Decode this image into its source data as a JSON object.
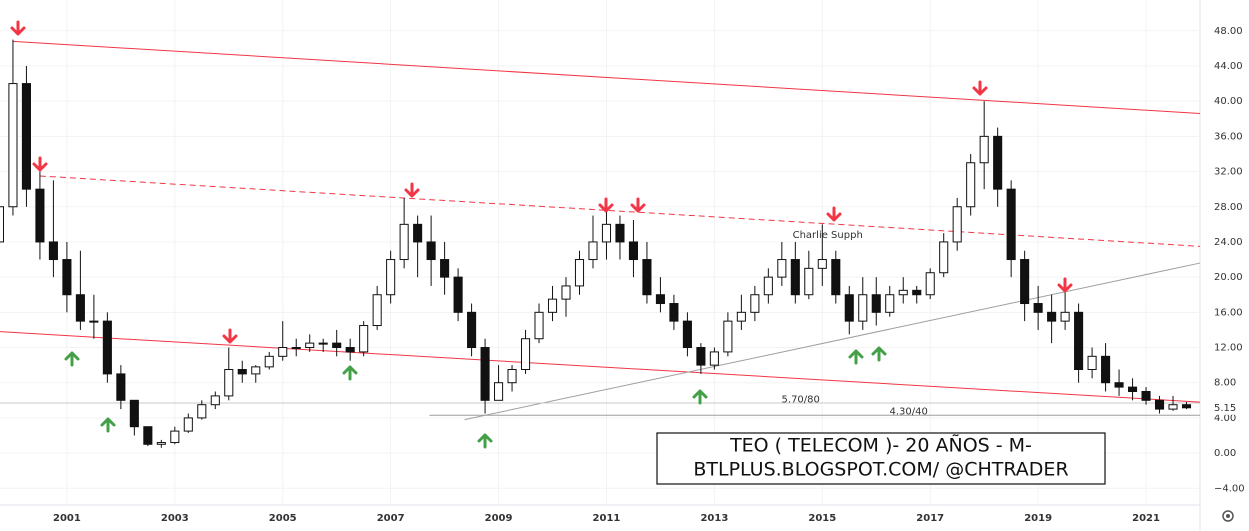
{
  "chart_data": {
    "type": "candlestick",
    "title": [
      "TEO ( TELECOM )- 20 AÑOS - M-",
      "BTLPLUS.BLOGSPOT.COM/ @CHTRADER"
    ],
    "x": [
      1999.75,
      2000.0,
      2000.25,
      2000.5,
      2000.75,
      2001.0,
      2001.25,
      2001.5,
      2001.75,
      2002.0,
      2002.25,
      2002.5,
      2002.75,
      2003.0,
      2003.25,
      2003.5,
      2003.75,
      2004.0,
      2004.25,
      2004.5,
      2004.75,
      2005.0,
      2005.25,
      2005.5,
      2005.75,
      2006.0,
      2006.25,
      2006.5,
      2006.75,
      2007.0,
      2007.25,
      2007.5,
      2007.75,
      2008.0,
      2008.25,
      2008.5,
      2008.75,
      2009.0,
      2009.25,
      2009.5,
      2009.75,
      2010.0,
      2010.25,
      2010.5,
      2010.75,
      2011.0,
      2011.25,
      2011.5,
      2011.75,
      2012.0,
      2012.25,
      2012.5,
      2012.75,
      2013.0,
      2013.25,
      2013.5,
      2013.75,
      2014.0,
      2014.25,
      2014.5,
      2014.75,
      2015.0,
      2015.25,
      2015.5,
      2015.75,
      2016.0,
      2016.25,
      2016.5,
      2016.75,
      2017.0,
      2017.25,
      2017.5,
      2017.75,
      2018.0,
      2018.25,
      2018.5,
      2018.75,
      2019.0,
      2019.25,
      2019.5,
      2019.75,
      2020.0,
      2020.25,
      2020.5,
      2020.75,
      2021.0,
      2021.25,
      2021.5,
      2021.75
    ],
    "open": [
      24,
      28,
      42,
      30,
      24,
      22,
      18,
      15,
      15,
      9,
      6,
      3,
      1,
      1.2,
      2.5,
      4,
      5.5,
      6.5,
      9.5,
      9,
      9.8,
      11,
      12,
      12,
      12.5,
      12.5,
      12,
      11.5,
      14.5,
      18,
      22,
      26,
      24,
      22,
      20,
      16,
      12,
      6,
      8,
      9.5,
      13,
      16,
      17.5,
      19,
      22,
      24,
      26,
      24,
      22,
      18,
      17,
      15,
      12,
      10,
      11.5,
      15,
      16,
      18,
      20,
      22,
      18,
      21,
      22,
      18,
      15,
      18,
      16,
      18,
      18.5,
      18,
      20.5,
      24,
      28,
      33,
      36,
      30,
      22,
      17,
      16,
      15,
      16,
      9.5,
      11,
      8,
      7.5,
      7,
      6,
      5,
      5.5
    ],
    "high": [
      30,
      47,
      44,
      32,
      31,
      24,
      23,
      18,
      16,
      10,
      6,
      3,
      1.5,
      3,
      4.5,
      6,
      7,
      12,
      10.5,
      10,
      11.5,
      15,
      13,
      13.5,
      13,
      14,
      13,
      15,
      19,
      23,
      29,
      27,
      27,
      24,
      21,
      17,
      13,
      10,
      10,
      14,
      17,
      19,
      20,
      23,
      27,
      28,
      27,
      26.5,
      24,
      20,
      18,
      16,
      12.5,
      12,
      16,
      18,
      19,
      21,
      24,
      24,
      23,
      26,
      23,
      19,
      20,
      20,
      19,
      20,
      19,
      21,
      25,
      29,
      34,
      40,
      37,
      31,
      23,
      19,
      18,
      18.5,
      17,
      12,
      12.5,
      9.5,
      8.5,
      7.5,
      6.5,
      6.5,
      5.8
    ],
    "low": [
      22,
      27,
      28,
      22,
      20,
      16,
      14,
      13,
      8,
      5,
      2,
      0.8,
      0.6,
      1,
      2.3,
      3.8,
      5,
      6,
      8,
      8,
      9.5,
      10.5,
      11,
      11.5,
      11.5,
      11,
      10.5,
      11,
      14,
      17,
      21,
      20,
      19,
      18,
      15,
      11,
      4.5,
      6,
      7,
      9,
      12.5,
      15,
      15.5,
      18,
      21,
      22,
      22,
      20,
      17,
      16,
      14,
      11,
      9,
      9.5,
      11,
      14,
      15,
      17,
      19,
      17,
      17.5,
      19,
      17,
      13.5,
      14,
      14.5,
      15.5,
      17,
      17,
      17.5,
      20,
      23,
      27,
      30,
      28,
      20,
      15,
      14,
      12.5,
      14,
      8,
      8.5,
      7,
      6.5,
      6,
      5.5,
      4.5,
      4.8,
      5
    ],
    "close": [
      28,
      42,
      30,
      24,
      22,
      18,
      15,
      15,
      9,
      6,
      3,
      1,
      1.2,
      2.5,
      4,
      5.5,
      6.5,
      9.5,
      9,
      9.8,
      11,
      12,
      12,
      12.5,
      12.5,
      12,
      11.5,
      14.5,
      18,
      22,
      26,
      24,
      22,
      20,
      16,
      12,
      6,
      8,
      9.5,
      13,
      16,
      17.5,
      19,
      22,
      24,
      26,
      24,
      22,
      18,
      17,
      15,
      12,
      10,
      11.5,
      15,
      16,
      18,
      20,
      22,
      18,
      21,
      22,
      18,
      15,
      18,
      16,
      18,
      18.5,
      18,
      20.5,
      24,
      28,
      33,
      36,
      30,
      22,
      17,
      16,
      15,
      16,
      9.5,
      11,
      8,
      7.5,
      7,
      6,
      5,
      5.5,
      5.15
    ],
    "last_price": {
      "value": 5.15,
      "label": "5.15"
    },
    "xlim": [
      1999.76,
      2022.0
    ],
    "ylim": [
      -5.9,
      51.5
    ],
    "xticks": [
      2001,
      2003,
      2005,
      2007,
      2009,
      2011,
      2013,
      2015,
      2017,
      2019,
      2021
    ],
    "yticks": [
      {
        "value": 48,
        "label": "48.00"
      },
      {
        "value": 44,
        "label": "44.00"
      },
      {
        "value": 40,
        "label": "40.00"
      },
      {
        "value": 36,
        "label": "36.00"
      },
      {
        "value": 32,
        "label": "32.00"
      },
      {
        "value": 28,
        "label": "28.00"
      },
      {
        "value": 24,
        "label": "24.00"
      },
      {
        "value": 20,
        "label": "20.00"
      },
      {
        "value": 16,
        "label": "16.00"
      },
      {
        "value": 12,
        "label": "12.00"
      },
      {
        "value": 8,
        "label": "8.00"
      },
      {
        "value": 4,
        "label": "4.00"
      },
      {
        "value": 0,
        "label": "0.00"
      },
      {
        "value": -4,
        "label": "−4.00"
      }
    ],
    "up_color": "#ffffff",
    "down_color": "#111111",
    "trend_lines": [
      {
        "x": [
          2000.0,
          2022.0
        ],
        "y": [
          46.8,
          38.6
        ],
        "color": "#f23645",
        "dashed": false
      },
      {
        "x": [
          2000.5,
          2022.0
        ],
        "y": [
          31.5,
          23.5
        ],
        "color": "#f23645",
        "dashed": true
      },
      {
        "x": [
          1999.76,
          2022.0
        ],
        "y": [
          13.8,
          5.8
        ],
        "color": "#f23645",
        "dashed": false
      },
      {
        "x": [
          2008.37,
          2022.0
        ],
        "y": [
          3.8,
          21.6
        ],
        "color": "#9e9e9e",
        "dashed": false
      },
      {
        "x": [
          1999.76,
          2022.0
        ],
        "y": [
          5.7,
          5.7
        ],
        "color": "#c8c8c8",
        "dashed": false
      },
      {
        "x": [
          2007.72,
          2022.0
        ],
        "y": [
          4.3,
          4.3
        ],
        "color": "#9e9e9e",
        "dashed": false
      }
    ],
    "annotations": [
      {
        "text": "5.70/80",
        "x": 2014.6,
        "y": 6.1
      },
      {
        "text": "4.30/40",
        "x": 2016.6,
        "y": 4.7
      },
      {
        "text": "Charlie Supph",
        "x": 2015.1,
        "y": 24.8
      }
    ]
  }
}
